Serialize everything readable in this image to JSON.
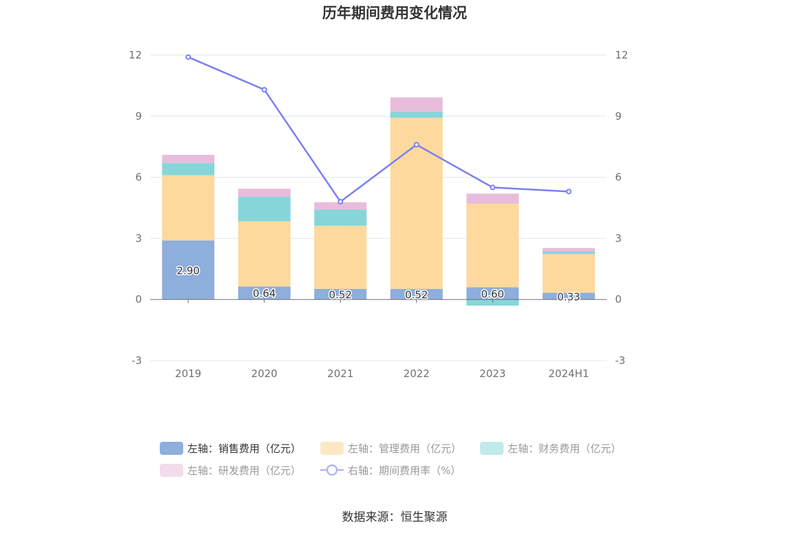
{
  "chart_data": {
    "type": "bar",
    "title": "历年期间费用变化情况",
    "categories": [
      "2019",
      "2020",
      "2021",
      "2022",
      "2023",
      "2024H1"
    ],
    "stacked": true,
    "left_axis": {
      "ylim": [
        -3,
        12
      ],
      "ticks": [
        "-3",
        "0",
        "3",
        "6",
        "9",
        "12"
      ]
    },
    "right_axis": {
      "ylim": [
        -3,
        12
      ],
      "ticks": [
        "-3",
        "0",
        "3",
        "6",
        "9",
        "12"
      ]
    },
    "grid": true,
    "legend_position": "bottom",
    "series": [
      {
        "name": "左轴：销售费用（亿元）",
        "axis": "left",
        "type": "bar",
        "color": "#8eaedb",
        "values": [
          2.9,
          0.64,
          0.52,
          0.52,
          0.6,
          0.33
        ],
        "labels": [
          "2.90",
          "0.64",
          "0.52",
          "0.52",
          "0.60",
          "0.33"
        ]
      },
      {
        "name": "左轴：管理费用（亿元）",
        "axis": "left",
        "type": "bar",
        "color": "#fed99d",
        "values": [
          3.2,
          3.2,
          3.1,
          8.4,
          4.1,
          1.9
        ]
      },
      {
        "name": "左轴：财务费用（亿元）",
        "axis": "left",
        "type": "bar",
        "color": "#86d6d9",
        "values": [
          0.6,
          1.2,
          0.8,
          0.3,
          -0.3,
          0.15
        ]
      },
      {
        "name": "左轴：研发费用（亿元）",
        "axis": "left",
        "type": "bar",
        "color": "#e8bddb",
        "values": [
          0.4,
          0.4,
          0.35,
          0.7,
          0.5,
          0.15
        ]
      },
      {
        "name": "右轴：期间费用率（%）",
        "axis": "right",
        "type": "line",
        "color": "#7b7ff0",
        "values": [
          11.9,
          10.3,
          4.8,
          7.6,
          5.5,
          5.3
        ]
      }
    ],
    "legend_dim_colors": [
      "#8eaedb",
      "#fde8c4",
      "#c2e9eb",
      "#f3dcec",
      "#b2b6f5"
    ],
    "source": "数据来源：恒生聚源"
  }
}
